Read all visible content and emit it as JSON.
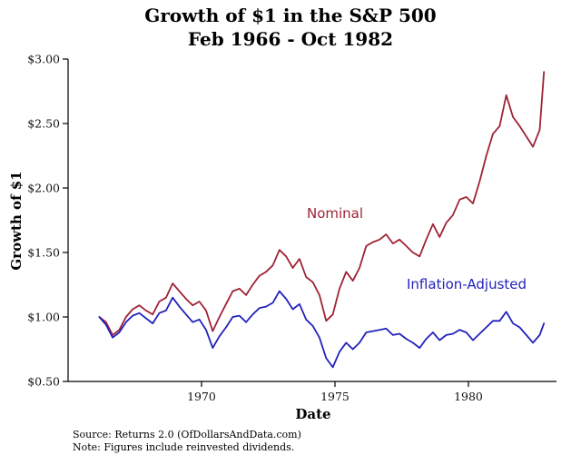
{
  "title": {
    "line1": "Growth of $1 in the S&P 500",
    "line2": "Feb 1966 - Oct 1982"
  },
  "axes": {
    "x_label": "Date",
    "y_label": "Growth of $1",
    "xlim": [
      1965.0,
      1983.3
    ],
    "ylim": [
      0.5,
      3.0
    ],
    "x_ticks": [
      1970,
      1975,
      1980
    ],
    "x_tick_labels": [
      "1970",
      "1975",
      "1980"
    ],
    "y_ticks": [
      0.5,
      1.0,
      1.5,
      2.0,
      2.5,
      3.0
    ],
    "y_tick_labels": [
      "$0.50",
      "$1.00",
      "$1.50",
      "$2.00",
      "$2.50",
      "$3.00"
    ]
  },
  "annotations": {
    "nominal": {
      "text": "Nominal",
      "color": "#9e2235"
    },
    "inflation": {
      "text": "Inflation-Adjusted",
      "color": "#2222bb"
    }
  },
  "footer": {
    "source": "Source: Returns 2.0 (OfDollarsAndData.com)",
    "note": "Note: Figures include reinvested dividends."
  },
  "chart_data": {
    "type": "line",
    "title": "Growth of $1 in the S&P 500, Feb 1966 - Oct 1982",
    "xlabel": "Date",
    "ylabel": "Growth of $1",
    "xlim": [
      1965.0,
      1983.3
    ],
    "ylim": [
      0.5,
      3.0
    ],
    "grid": false,
    "legend": "none (direct labels on plot)",
    "x": [
      1966.17,
      1966.42,
      1966.67,
      1966.92,
      1967.17,
      1967.42,
      1967.67,
      1967.92,
      1968.17,
      1968.42,
      1968.67,
      1968.92,
      1969.17,
      1969.42,
      1969.67,
      1969.92,
      1970.17,
      1970.42,
      1970.67,
      1970.92,
      1971.17,
      1971.42,
      1971.67,
      1971.92,
      1972.17,
      1972.42,
      1972.67,
      1972.92,
      1973.17,
      1973.42,
      1973.67,
      1973.92,
      1974.17,
      1974.42,
      1974.67,
      1974.92,
      1975.17,
      1975.42,
      1975.67,
      1975.92,
      1976.17,
      1976.42,
      1976.67,
      1976.92,
      1977.17,
      1977.42,
      1977.67,
      1977.92,
      1978.17,
      1978.42,
      1978.67,
      1978.92,
      1979.17,
      1979.42,
      1979.67,
      1979.92,
      1980.17,
      1980.42,
      1980.67,
      1980.92,
      1981.17,
      1981.42,
      1981.67,
      1981.92,
      1982.17,
      1982.42,
      1982.67,
      1982.83
    ],
    "series": [
      {
        "name": "Nominal",
        "color": "#9e2235",
        "values": [
          1.0,
          0.96,
          0.86,
          0.9,
          1.0,
          1.06,
          1.09,
          1.05,
          1.02,
          1.12,
          1.15,
          1.26,
          1.2,
          1.14,
          1.09,
          1.12,
          1.05,
          0.89,
          1.0,
          1.1,
          1.2,
          1.22,
          1.17,
          1.25,
          1.32,
          1.35,
          1.4,
          1.52,
          1.47,
          1.38,
          1.45,
          1.31,
          1.27,
          1.17,
          0.97,
          1.02,
          1.22,
          1.35,
          1.28,
          1.38,
          1.55,
          1.58,
          1.6,
          1.64,
          1.57,
          1.6,
          1.55,
          1.5,
          1.47,
          1.6,
          1.72,
          1.62,
          1.73,
          1.79,
          1.91,
          1.93,
          1.88,
          2.05,
          2.25,
          2.42,
          2.48,
          2.72,
          2.55,
          2.48,
          2.4,
          2.32,
          2.45,
          2.9
        ]
      },
      {
        "name": "Inflation-Adjusted",
        "color": "#2222bb",
        "values": [
          1.0,
          0.94,
          0.84,
          0.88,
          0.96,
          1.01,
          1.03,
          0.99,
          0.95,
          1.03,
          1.05,
          1.15,
          1.08,
          1.02,
          0.96,
          0.98,
          0.9,
          0.76,
          0.85,
          0.92,
          1.0,
          1.01,
          0.96,
          1.02,
          1.07,
          1.08,
          1.11,
          1.2,
          1.14,
          1.06,
          1.1,
          0.98,
          0.93,
          0.84,
          0.68,
          0.61,
          0.73,
          0.8,
          0.75,
          0.8,
          0.88,
          0.89,
          0.9,
          0.91,
          0.86,
          0.87,
          0.83,
          0.8,
          0.76,
          0.83,
          0.88,
          0.82,
          0.86,
          0.87,
          0.9,
          0.88,
          0.82,
          0.87,
          0.92,
          0.97,
          0.97,
          1.04,
          0.95,
          0.92,
          0.86,
          0.8,
          0.86,
          0.95
        ]
      }
    ]
  }
}
